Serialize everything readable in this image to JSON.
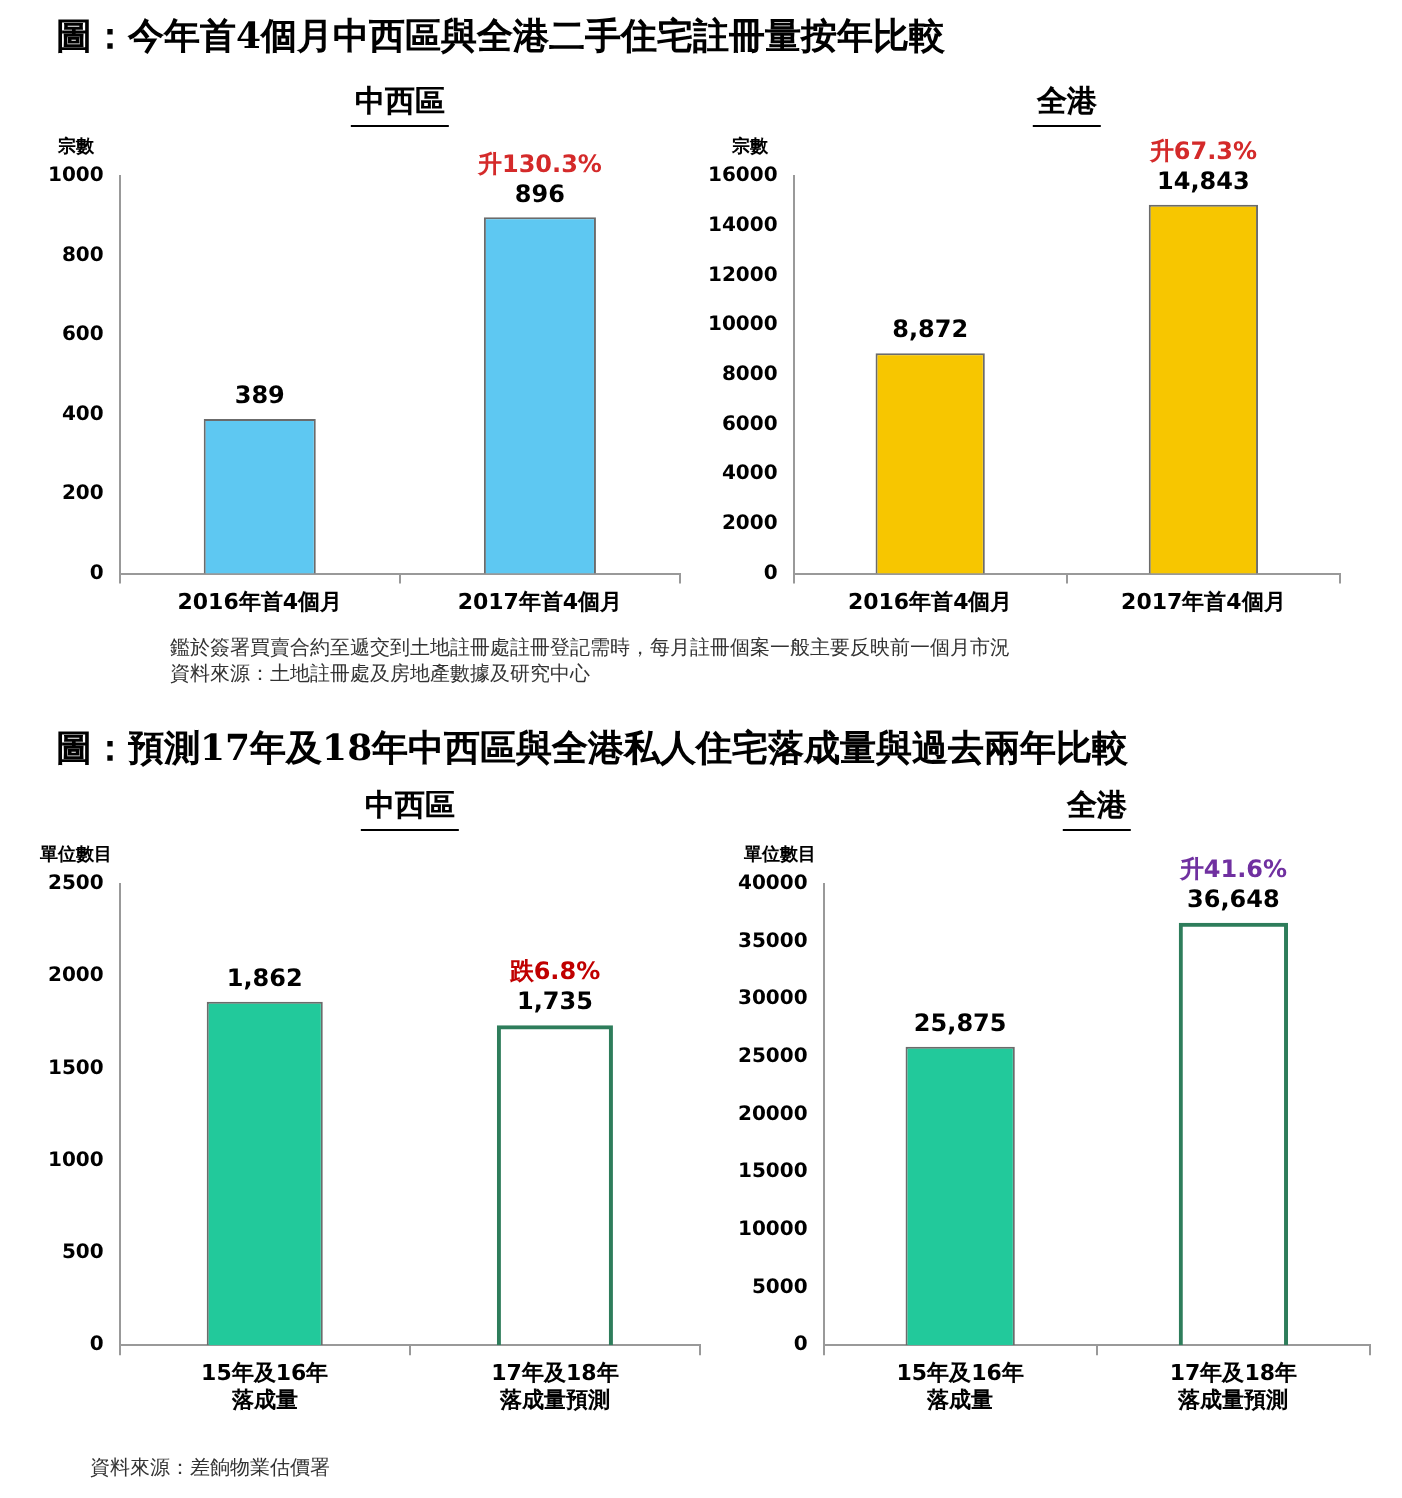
{
  "chart_data": [
    {
      "type": "bar",
      "title": "中西區",
      "ylabel": "宗數",
      "categories": [
        "2016年首4個月",
        "2017年首4個月"
      ],
      "series": [
        {
          "color": "#5ec8f2",
          "values": [
            389,
            896
          ],
          "value_labels": [
            "389",
            "896"
          ]
        }
      ],
      "ylim": [
        0,
        1000
      ],
      "yticks": [
        0,
        200,
        400,
        600,
        800,
        1000
      ],
      "grid": false,
      "legend": false,
      "annotations": [
        "圖：今年首4個月中西區與全港二手住宅註冊量按年比較",
        {
          "text": "升130.3%",
          "x": "2017年首4個月",
          "y": 896
        }
      ]
    },
    {
      "type": "bar",
      "title": "全港",
      "ylabel": "宗數",
      "categories": [
        "2016年首4個月",
        "2017年首4個月"
      ],
      "series": [
        {
          "color": "#f7c600",
          "values": [
            8872,
            14843
          ],
          "value_labels": [
            "8,872",
            "14,843"
          ]
        }
      ],
      "ylim": [
        0,
        16000
      ],
      "yticks": [
        0,
        2000,
        4000,
        6000,
        8000,
        10000,
        12000,
        14000,
        16000
      ],
      "grid": false,
      "legend": false,
      "annotations": [
        {
          "text": "升67.3%",
          "x": "2017年首4個月",
          "y": 14843
        },
        "鑑於簽署買賣合約至遞交到土地註冊處註冊登記需時，每月註冊個案一般主要反映前一個月市況",
        "資料來源：土地註冊處及房地產數據及研究中心"
      ]
    },
    {
      "type": "bar",
      "title": "中西區",
      "ylabel": "單位數目",
      "categories": [
        "15年及16年落成量",
        "17年及18年落成量預測"
      ],
      "series": [
        {
          "color": "#22c99b",
          "values": [
            1862,
            null
          ],
          "value_labels": [
            "1,862",
            null
          ]
        },
        {
          "color": "#2e7d5b",
          "values": [
            null,
            1735
          ],
          "value_labels": [
            null,
            "1,735"
          ],
          "line_style": "dashed"
        }
      ],
      "ylim": [
        0,
        2500
      ],
      "yticks": [
        0,
        500,
        1000,
        1500,
        2000,
        2500
      ],
      "grid": false,
      "legend": false,
      "annotations": [
        "圖：預測17年及18年中西區與全港私人住宅落成量與過去兩年比較",
        {
          "text": "跌6.8%",
          "x": "17年及18年落成量預測",
          "y": 1735
        }
      ]
    },
    {
      "type": "bar",
      "title": "全港",
      "ylabel": "單位數目",
      "categories": [
        "15年及16年落成量",
        "17年及18年落成量預測"
      ],
      "series": [
        {
          "color": "#22c99b",
          "values": [
            25875,
            null
          ],
          "value_labels": [
            "25,875",
            null
          ]
        },
        {
          "color": "#2e7d5b",
          "values": [
            null,
            36648
          ],
          "value_labels": [
            null,
            "36,648"
          ],
          "line_style": "dashed"
        }
      ],
      "ylim": [
        0,
        40000
      ],
      "yticks": [
        0,
        5000,
        10000,
        15000,
        20000,
        25000,
        30000,
        35000,
        40000
      ],
      "grid": false,
      "legend": false,
      "annotations": [
        {
          "text": "升41.6%",
          "x": "17年及18年落成量預測",
          "y": 36648
        },
        "資料來源：差餉物業估價署"
      ]
    }
  ]
}
